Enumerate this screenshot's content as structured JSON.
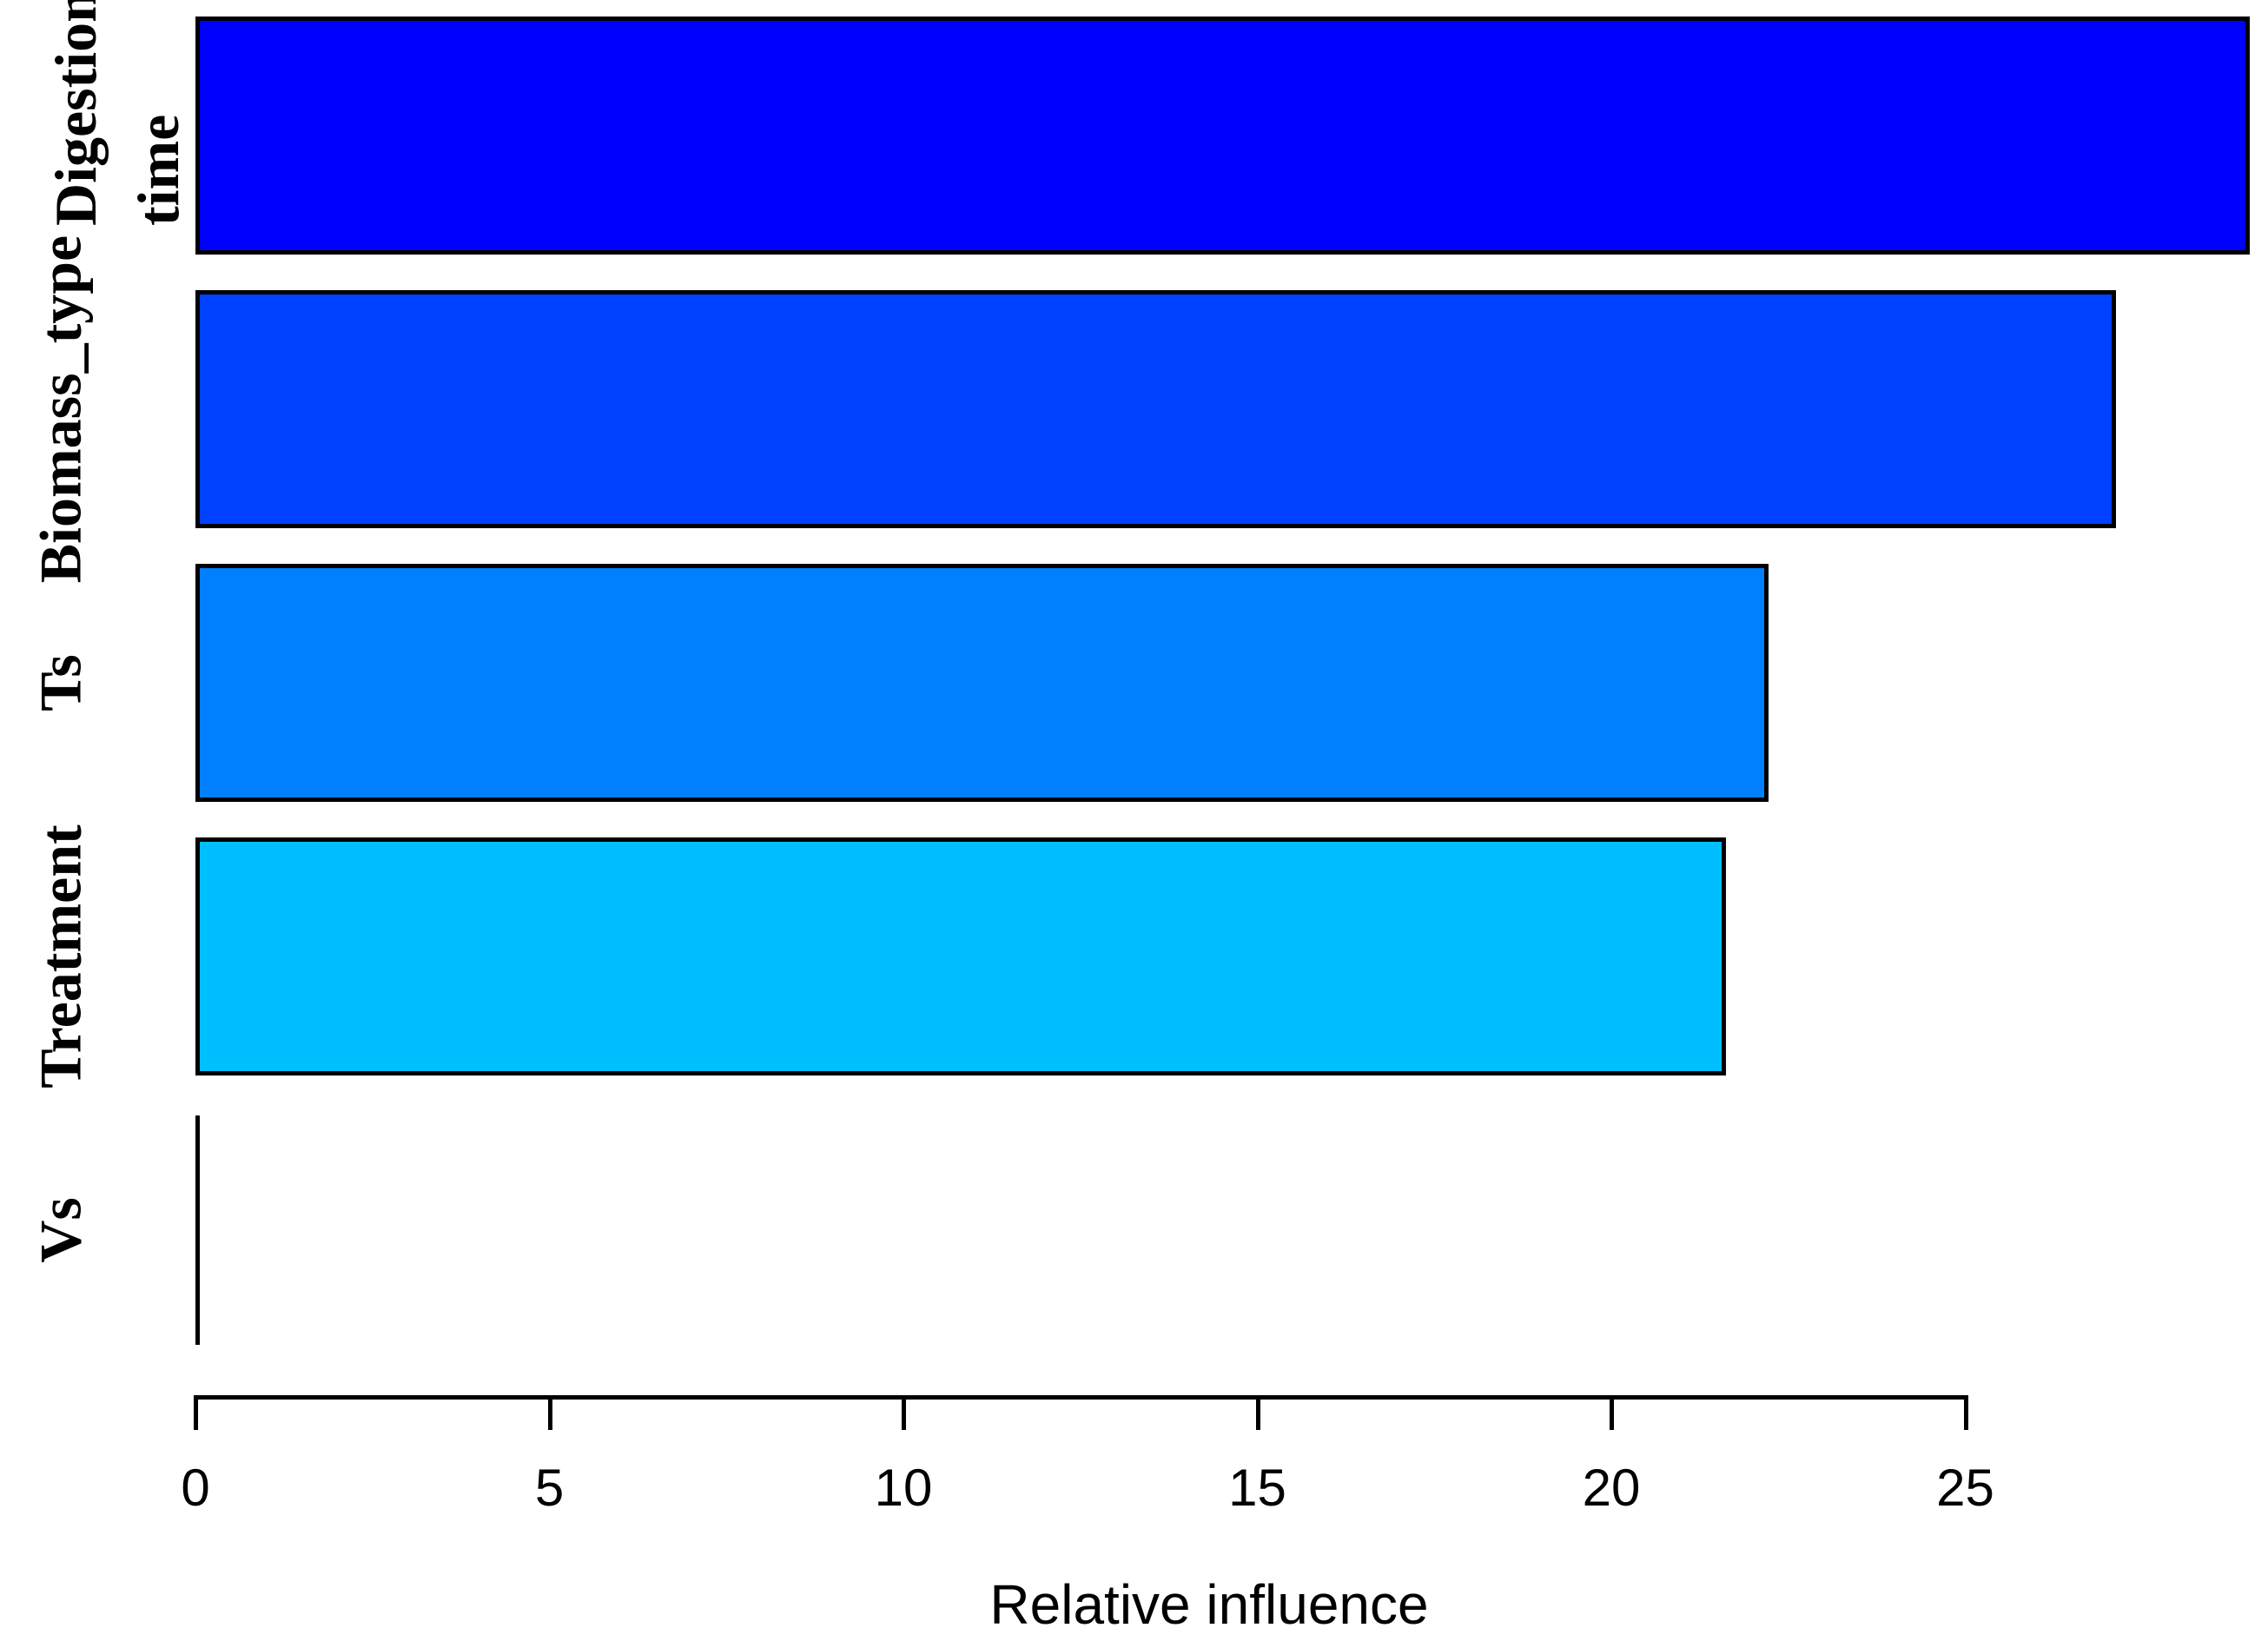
{
  "chart_data": {
    "type": "bar",
    "orientation": "horizontal",
    "title": "",
    "xlabel": "Relative influence",
    "ylabel": "",
    "categories": [
      "Digestion\ntime",
      "Biomass_type",
      "Ts",
      "Treatment",
      "Vs"
    ],
    "values": [
      28.9,
      27.0,
      22.1,
      21.5,
      0.05
    ],
    "bar_colors": [
      "#0000FF",
      "#0040FF",
      "#0080FF",
      "#00BFFF",
      "#00FFFF"
    ],
    "bar_border_color": "#000000",
    "x_ticks": [
      0,
      5,
      10,
      15,
      20,
      25
    ],
    "xlim": [
      0,
      25
    ],
    "grid": false,
    "legend": "none",
    "background_color": "#FFFFFF",
    "axis_color": "#000000",
    "text_color": "#000000"
  }
}
